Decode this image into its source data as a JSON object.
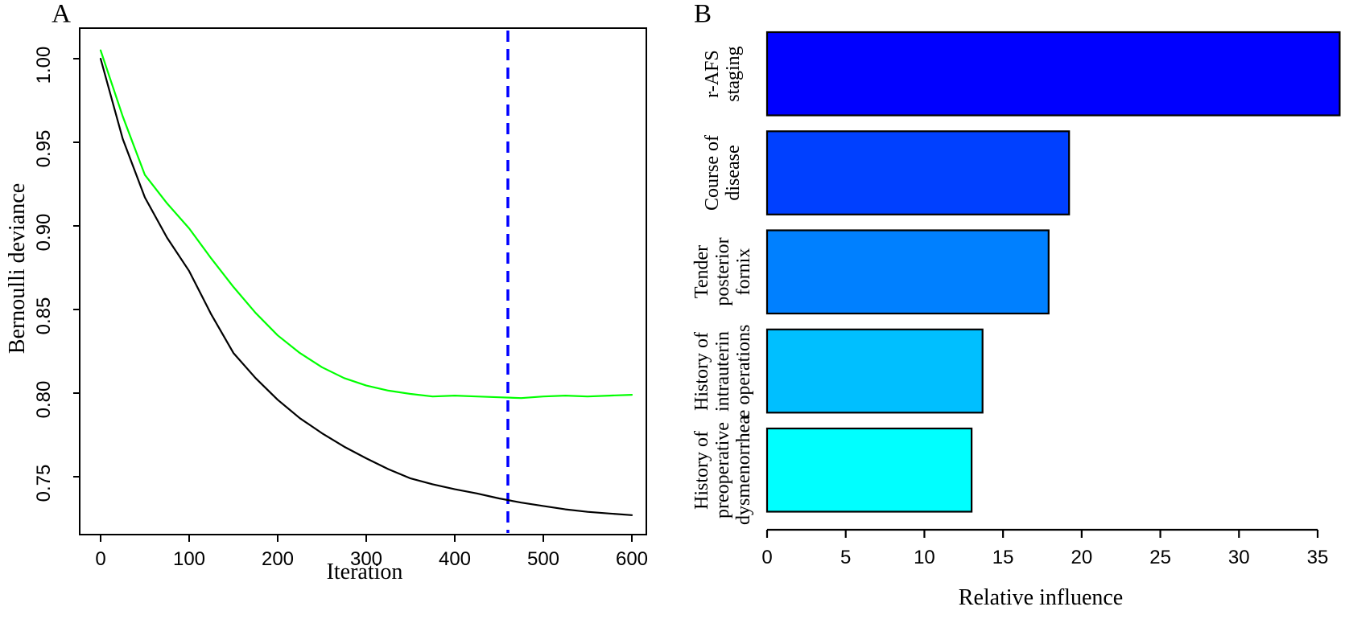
{
  "figure_background": "#FFFFFF",
  "chart_data": [
    {
      "type": "line",
      "panel_label": "A",
      "xlabel": "Iteration",
      "ylabel": "Bernoulli deviance",
      "x_ticks": [
        0,
        100,
        200,
        300,
        400,
        500,
        600
      ],
      "y_ticks": [
        "1.00",
        "0.95",
        "0.90",
        "0.85",
        "0.80",
        "0.75"
      ],
      "xlim": [
        0,
        600
      ],
      "ylim": [
        0.715,
        1.018
      ],
      "grid": "off",
      "legend": "none",
      "series": [
        {
          "name": "black curve",
          "color": "#000000",
          "x": [
            0,
            25,
            50,
            75,
            100,
            125,
            150,
            175,
            200,
            225,
            250,
            275,
            300,
            325,
            350,
            375,
            400,
            425,
            450,
            475,
            500,
            525,
            550,
            575,
            600
          ],
          "y": [
            1.0,
            0.952,
            0.917,
            0.893,
            0.873,
            0.847,
            0.824,
            0.809,
            0.796,
            0.785,
            0.776,
            0.768,
            0.761,
            0.7545,
            0.749,
            0.7455,
            0.7425,
            0.74,
            0.737,
            0.7345,
            0.7325,
            0.7305,
            0.729,
            0.728,
            0.727
          ]
        },
        {
          "name": "green curve",
          "color": "#00FF00",
          "x": [
            0,
            25,
            50,
            75,
            100,
            125,
            150,
            175,
            200,
            225,
            250,
            275,
            300,
            325,
            350,
            375,
            400,
            425,
            450,
            475,
            500,
            525,
            550,
            575,
            600
          ],
          "y": [
            1.005,
            0.9655,
            0.9305,
            0.9135,
            0.8985,
            0.8805,
            0.8635,
            0.848,
            0.8345,
            0.824,
            0.8155,
            0.809,
            0.8045,
            0.8015,
            0.7995,
            0.798,
            0.7985,
            0.798,
            0.7975,
            0.797,
            0.798,
            0.7985,
            0.798,
            0.7985,
            0.799
          ]
        }
      ],
      "vline": {
        "x": 460,
        "color": "#0000FF",
        "style": "dashed"
      }
    },
    {
      "type": "bar",
      "orientation": "horizontal",
      "panel_label": "B",
      "xlabel": "Relative influence",
      "categories": [
        [
          "r-AFS",
          "staging"
        ],
        [
          "Course of",
          "disease"
        ],
        [
          "Tender",
          "posterior",
          "fornix"
        ],
        [
          "History of",
          "intrauterin",
          "e operations"
        ],
        [
          "History of",
          "preoperative",
          "dysmenorrhea"
        ]
      ],
      "values": [
        36.4,
        19.2,
        17.9,
        13.7,
        13.0
      ],
      "bar_colors": [
        "#0000FF",
        "#0040FF",
        "#0080FF",
        "#00BFFF",
        "#00FFFF"
      ],
      "bar_border_color": "#000000",
      "x_ticks": [
        0,
        5,
        10,
        15,
        20,
        25,
        30,
        35
      ],
      "xlim": [
        0,
        35
      ],
      "grid": "off"
    }
  ]
}
